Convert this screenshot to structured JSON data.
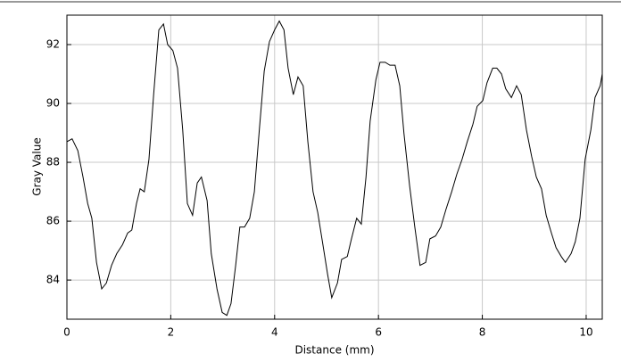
{
  "chart_data": {
    "type": "line",
    "x_label": "Distance (mm)",
    "y_label": "Gray Value",
    "xlim": [
      0,
      10.31
    ],
    "ylim": [
      82.67,
      93
    ],
    "xticks": [
      0,
      2,
      4,
      6,
      8,
      10
    ],
    "yticks": [
      84,
      86,
      88,
      90,
      92
    ],
    "grid": true,
    "color": "#000000",
    "x": [
      0,
      0.1,
      0.21,
      0.31,
      0.4,
      0.48,
      0.57,
      0.67,
      0.76,
      0.86,
      0.96,
      1.07,
      1.17,
      1.25,
      1.34,
      1.41,
      1.49,
      1.58,
      1.67,
      1.77,
      1.86,
      1.94,
      2.04,
      2.13,
      2.23,
      2.32,
      2.42,
      2.51,
      2.59,
      2.7,
      2.78,
      2.89,
      2.99,
      3.08,
      3.16,
      3.25,
      3.33,
      3.42,
      3.52,
      3.61,
      3.71,
      3.8,
      3.9,
      4.0,
      4.09,
      4.18,
      4.26,
      4.36,
      4.45,
      4.55,
      4.64,
      4.74,
      4.83,
      4.93,
      5.02,
      5.1,
      5.21,
      5.29,
      5.4,
      5.48,
      5.58,
      5.67,
      5.76,
      5.84,
      5.95,
      6.03,
      6.13,
      6.22,
      6.32,
      6.41,
      6.49,
      6.6,
      6.7,
      6.8,
      6.91,
      6.99,
      7.1,
      7.2,
      7.3,
      7.41,
      7.51,
      7.61,
      7.71,
      7.82,
      7.9,
      8.01,
      8.09,
      8.2,
      8.28,
      8.37,
      8.45,
      8.56,
      8.66,
      8.75,
      8.85,
      8.95,
      9.04,
      9.14,
      9.23,
      9.33,
      9.42,
      9.52,
      9.6,
      9.71,
      9.79,
      9.88,
      9.98,
      10.09,
      10.17,
      10.27,
      10.31
    ],
    "values": [
      88.7,
      88.8,
      88.4,
      87.5,
      86.6,
      86.1,
      84.6,
      83.7,
      83.9,
      84.5,
      84.9,
      85.2,
      85.6,
      85.7,
      86.6,
      87.1,
      87.0,
      88.1,
      90.3,
      92.5,
      92.7,
      92.0,
      91.8,
      91.2,
      89.1,
      86.6,
      86.2,
      87.3,
      87.5,
      86.7,
      84.9,
      83.7,
      82.9,
      82.8,
      83.2,
      84.5,
      85.8,
      85.8,
      86.1,
      87.0,
      89.2,
      91.1,
      92.1,
      92.5,
      92.8,
      92.5,
      91.2,
      90.3,
      90.9,
      90.6,
      88.7,
      87.0,
      86.3,
      85.2,
      84.2,
      83.4,
      83.9,
      84.7,
      84.8,
      85.4,
      86.1,
      85.9,
      87.5,
      89.4,
      90.8,
      91.4,
      91.4,
      91.3,
      91.3,
      90.6,
      89.0,
      87.2,
      85.8,
      84.5,
      84.6,
      85.4,
      85.5,
      85.8,
      86.4,
      87.0,
      87.6,
      88.1,
      88.7,
      89.3,
      89.9,
      90.1,
      90.7,
      91.2,
      91.2,
      91.0,
      90.5,
      90.2,
      90.6,
      90.3,
      89.1,
      88.2,
      87.5,
      87.1,
      86.2,
      85.6,
      85.1,
      84.8,
      84.6,
      84.9,
      85.3,
      86.1,
      88.1,
      89.1,
      90.2,
      90.6,
      91.0
    ]
  }
}
